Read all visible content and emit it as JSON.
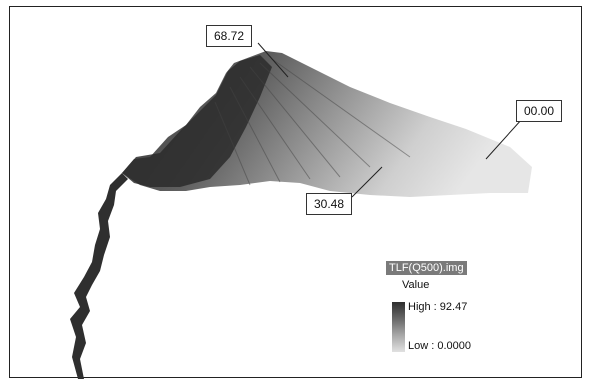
{
  "callouts": {
    "max_label": "68.72",
    "mid_label": "30.48",
    "min_label": "00.00"
  },
  "legend": {
    "title": "TLF(Q500).img",
    "value_heading": "Value",
    "high": "High : 92.47",
    "low": "Low : 0.0000"
  },
  "colors": {
    "high_ramp": "#2e2e2e",
    "low_ramp": "#e1e1e1",
    "frame_border": "#222222"
  }
}
